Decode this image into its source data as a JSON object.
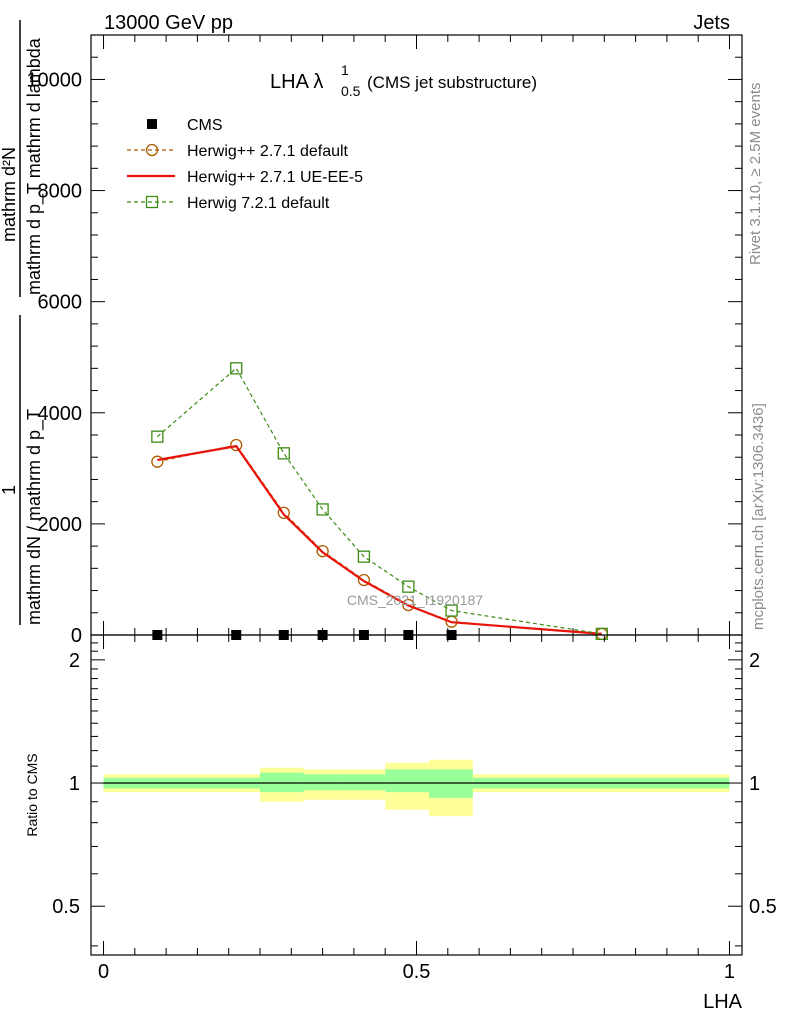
{
  "header": {
    "energy_label": "13000 GeV pp",
    "process_label": "Jets"
  },
  "side_labels": {
    "rivet": "Rivet 3.1.10, ≥ 2.5M events",
    "mcplots": "mcplots.cern.ch [arXiv:1306.3436]"
  },
  "colors": {
    "cms": "#000000",
    "herwig_default": "#b05a00",
    "herwig_ueee5": "#e8140c",
    "herwig72": "#3c8c14",
    "band_outer": "#ffff99",
    "band_inner": "#99ff99"
  },
  "chart_data": [
    {
      "type": "line",
      "title_main": "LHA λ",
      "title_sup": "1",
      "title_sub": "0.5",
      "title_suffix": "(CMS jet substructure)",
      "watermark": "CMS_2021_I1920187",
      "ylabel_numerator": "mathrm d²N",
      "ylabel_denominator": "mathrm d p_T mathrm d lambda",
      "ylabel_prefix_num": "1",
      "ylabel_prefix_den": "mathrm dN / mathrm d p_T",
      "xlim": [
        -0.02,
        1.02
      ],
      "ylim": [
        0,
        10800
      ],
      "yticks": [
        {
          "value": 0,
          "label": "0"
        },
        {
          "value": 2000,
          "label": "2000"
        },
        {
          "value": 4000,
          "label": "4000"
        },
        {
          "value": 6000,
          "label": "6000"
        },
        {
          "value": 8000,
          "label": "8000"
        },
        {
          "value": 10000,
          "label": "10000"
        }
      ],
      "legend": [
        {
          "key": "cms",
          "label": "CMS"
        },
        {
          "key": "herwig_default",
          "label": "Herwig++ 2.7.1 default"
        },
        {
          "key": "herwig_ueee5",
          "label": "Herwig++ 2.7.1 UE-EE-5"
        },
        {
          "key": "herwig72",
          "label": "Herwig 7.2.1 default"
        }
      ],
      "series": [
        {
          "key": "cms",
          "name": "CMS",
          "style": "points",
          "x": [
            0.086,
            0.212,
            0.288,
            0.35,
            0.416,
            0.487,
            0.556
          ],
          "y": [
            0,
            0,
            0,
            0,
            0,
            0,
            0
          ]
        },
        {
          "key": "herwig_default",
          "name": "Herwig++ 2.7.1 default",
          "style": "dashed-circle",
          "x": [
            0.086,
            0.212,
            0.288,
            0.35,
            0.416,
            0.487,
            0.556,
            0.796
          ],
          "y": [
            3120,
            3420,
            2200,
            1510,
            990,
            540,
            240,
            20
          ]
        },
        {
          "key": "herwig_ueee5",
          "name": "Herwig++ 2.7.1 UE-EE-5",
          "style": "solid",
          "x": [
            0.086,
            0.212,
            0.288,
            0.35,
            0.416,
            0.487,
            0.556,
            0.796
          ],
          "y": [
            3150,
            3400,
            2170,
            1490,
            970,
            530,
            230,
            20
          ]
        },
        {
          "key": "herwig72",
          "name": "Herwig 7.2.1 default",
          "style": "dashed-square",
          "x": [
            0.086,
            0.212,
            0.288,
            0.35,
            0.416,
            0.487,
            0.556,
            0.796
          ],
          "y": [
            3570,
            4800,
            3270,
            2260,
            1410,
            870,
            440,
            20
          ]
        }
      ]
    },
    {
      "type": "area",
      "ylabel": "Ratio to CMS",
      "xlabel": "LHA",
      "xlim": [
        -0.02,
        1.02
      ],
      "ylim": [
        0.38,
        2.3
      ],
      "yscale": "log",
      "xticks": [
        {
          "value": 0,
          "label": "0"
        },
        {
          "value": 0.5,
          "label": "0.5"
        },
        {
          "value": 1,
          "label": "1"
        }
      ],
      "yticks": [
        {
          "value": 0.5,
          "label": "0.5"
        },
        {
          "value": 1,
          "label": "1"
        },
        {
          "value": 2,
          "label": "2"
        }
      ],
      "bins": [
        {
          "x0": 0.0,
          "x1": 0.25,
          "outer": [
            0.95,
            1.05
          ],
          "inner": [
            0.97,
            1.03
          ]
        },
        {
          "x0": 0.25,
          "x1": 0.32,
          "outer": [
            0.9,
            1.09
          ],
          "inner": [
            0.95,
            1.06
          ]
        },
        {
          "x0": 0.32,
          "x1": 0.38,
          "outer": [
            0.91,
            1.08
          ],
          "inner": [
            0.96,
            1.05
          ]
        },
        {
          "x0": 0.38,
          "x1": 0.45,
          "outer": [
            0.91,
            1.08
          ],
          "inner": [
            0.96,
            1.05
          ]
        },
        {
          "x0": 0.45,
          "x1": 0.52,
          "outer": [
            0.86,
            1.12
          ],
          "inner": [
            0.95,
            1.08
          ]
        },
        {
          "x0": 0.52,
          "x1": 0.59,
          "outer": [
            0.83,
            1.14
          ],
          "inner": [
            0.92,
            1.08
          ]
        },
        {
          "x0": 0.59,
          "x1": 1.0,
          "outer": [
            0.95,
            1.05
          ],
          "inner": [
            0.97,
            1.03
          ]
        }
      ],
      "reference": 1
    }
  ]
}
